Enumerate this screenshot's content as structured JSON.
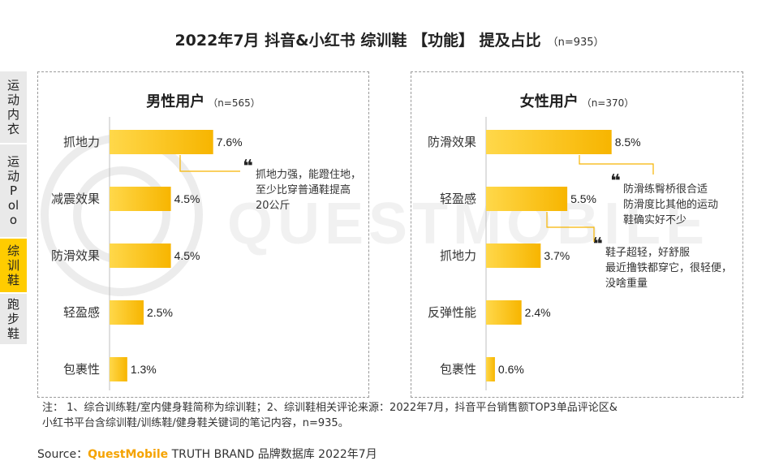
{
  "title": {
    "main": "2022年7月 抖音&小红书 综训鞋 【功能】 提及占比",
    "n": "（n=935）"
  },
  "sidebar": {
    "tabs": [
      {
        "label": "运动内衣",
        "active": false
      },
      {
        "label": "运动Polo",
        "active": false
      },
      {
        "label": "综训鞋",
        "active": true
      },
      {
        "label": "跑步鞋",
        "active": false
      }
    ]
  },
  "watermark": "QUESTMOBILE",
  "colors": {
    "bar_start": "#ffd84a",
    "bar_end": "#f7b500",
    "accent": "#ffcc00",
    "connector": "#f7b500"
  },
  "chart_data": [
    {
      "type": "bar",
      "orientation": "horizontal",
      "title": "男性用户",
      "n": "（n=565）",
      "categories": [
        "抓地力",
        "减震效果",
        "防滑效果",
        "轻盈感",
        "包裹性"
      ],
      "values": [
        7.6,
        4.5,
        4.5,
        2.5,
        1.3
      ],
      "value_labels": [
        "7.6%",
        "4.5%",
        "4.5%",
        "2.5%",
        "1.3%"
      ],
      "xlim": [
        0,
        10
      ]
    },
    {
      "type": "bar",
      "orientation": "horizontal",
      "title": "女性用户",
      "n": "（n=370）",
      "categories": [
        "防滑效果",
        "轻盈感",
        "抓地力",
        "反弹性能",
        "包裹性"
      ],
      "values": [
        8.5,
        5.5,
        3.7,
        2.4,
        0.6
      ],
      "value_labels": [
        "8.5%",
        "5.5%",
        "3.7%",
        "2.4%",
        "0.6%"
      ],
      "xlim": [
        0,
        10
      ]
    }
  ],
  "quotes": {
    "male_grip": [
      "抓地力强，能蹬住地，",
      "至少比穿普通鞋提高",
      "20公斤"
    ],
    "female_antislip": [
      "防滑练臀桥很合适",
      "防滑度比其他的运动",
      "鞋确实好不少"
    ],
    "female_light": [
      "鞋子超轻，好舒服",
      "最近撸铁都穿它，很轻便，",
      "没啥重量"
    ]
  },
  "quote_mark": "❝",
  "note": [
    "注：  1、综合训练鞋/室内健身鞋简称为综训鞋；2、综训鞋相关评论来源：2022年7月，抖音平台销售额TOP3单品评论区&",
    "小红书平台含综训鞋/训练鞋/健身鞋关键词的笔记内容，n=935。"
  ],
  "source": {
    "prefix": "Source：",
    "brand": "QuestMobile",
    "suffix": " TRUTH BRAND 品牌数据库 2022年7月"
  }
}
